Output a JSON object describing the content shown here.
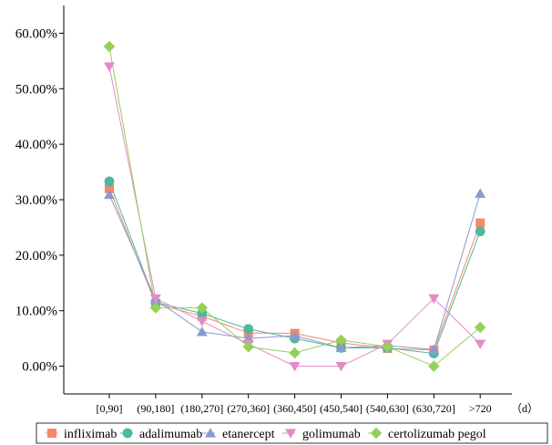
{
  "chart_data": {
    "type": "line",
    "categories": [
      "[0,90]",
      "(90,180]",
      "(180,270]",
      "(270,360]",
      "(360,450]",
      "(450,540]",
      "(540,630]",
      "(630,720]",
      ">720"
    ],
    "xlabel": "（d）",
    "ylim": [
      -0.05,
      0.65
    ],
    "yticks": [
      "0.00%",
      "10.00%",
      "20.00%",
      "30.00%",
      "40.00%",
      "50.00%",
      "60.00%"
    ],
    "ytick_values": [
      0.0,
      0.1,
      0.2,
      0.3,
      0.4,
      0.5,
      0.6
    ],
    "grid": false,
    "legend_position": "bottom",
    "series": [
      {
        "name": "infliximab",
        "marker": "square",
        "color": "#F4886A",
        "values": [
          0.32,
          0.113,
          0.09,
          0.06,
          0.059,
          0.042,
          0.032,
          0.029,
          0.258
        ]
      },
      {
        "name": "adalimumab",
        "marker": "circle",
        "color": "#4DB89E",
        "values": [
          0.333,
          0.115,
          0.095,
          0.067,
          0.05,
          0.033,
          0.033,
          0.023,
          0.243
        ]
      },
      {
        "name": "etanercept",
        "marker": "triangle-up",
        "color": "#8C9AD0",
        "values": [
          0.309,
          0.12,
          0.062,
          0.05,
          0.055,
          0.033,
          0.037,
          0.03,
          0.311
        ]
      },
      {
        "name": "golimumab",
        "marker": "triangle-down",
        "color": "#E58AC6",
        "values": [
          0.54,
          0.122,
          0.081,
          0.04,
          0.0,
          0.0,
          0.04,
          0.122,
          0.04
        ]
      },
      {
        "name": "certolizumab pegol",
        "marker": "diamond",
        "color": "#94D05A",
        "values": [
          0.576,
          0.105,
          0.105,
          0.035,
          0.024,
          0.047,
          0.035,
          0.0,
          0.07
        ]
      }
    ]
  }
}
